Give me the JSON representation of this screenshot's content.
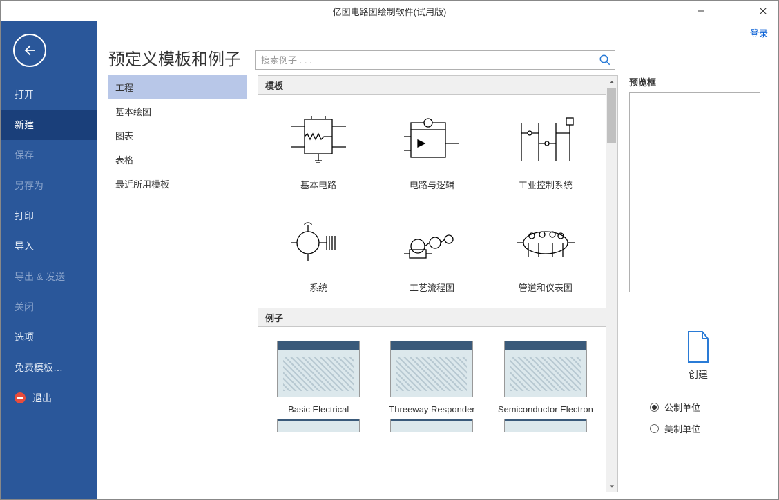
{
  "window": {
    "title": "亿图电路图绘制软件(试用版)"
  },
  "login": "登录",
  "sidebar": {
    "items": [
      {
        "label": "打开",
        "state": "normal"
      },
      {
        "label": "新建",
        "state": "active"
      },
      {
        "label": "保存",
        "state": "disabled"
      },
      {
        "label": "另存为",
        "state": "disabled"
      },
      {
        "label": "打印",
        "state": "normal"
      },
      {
        "label": "导入",
        "state": "normal"
      },
      {
        "label": "导出 & 发送",
        "state": "disabled"
      },
      {
        "label": "关闭",
        "state": "disabled"
      },
      {
        "label": "选项",
        "state": "normal"
      },
      {
        "label": "免费模板…",
        "state": "normal"
      }
    ],
    "exit": "退出"
  },
  "page": {
    "title": "预定义模板和例子"
  },
  "search": {
    "placeholder": "搜索例子 . . ."
  },
  "categories": [
    {
      "label": "工程",
      "active": true
    },
    {
      "label": "基本绘图",
      "active": false
    },
    {
      "label": "图表",
      "active": false
    },
    {
      "label": "表格",
      "active": false
    },
    {
      "label": "最近所用模板",
      "active": false
    }
  ],
  "sections": {
    "templates_head": "模板",
    "examples_head": "例子"
  },
  "templates": [
    {
      "label": "基本电路"
    },
    {
      "label": "电路与逻辑"
    },
    {
      "label": "工业控制系统"
    },
    {
      "label": "系统"
    },
    {
      "label": "工艺流程图"
    },
    {
      "label": "管道和仪表图"
    }
  ],
  "examples": [
    {
      "label": "Basic Electrical"
    },
    {
      "label": "Threeway Responder"
    },
    {
      "label": "Semiconductor Electron"
    }
  ],
  "right": {
    "preview_label": "预览框",
    "create": "创建",
    "units": [
      {
        "label": "公制单位",
        "checked": true
      },
      {
        "label": "美制单位",
        "checked": false
      }
    ]
  },
  "colors": {
    "sidebar_bg": "#2a579a",
    "sidebar_active": "#1a3f7a",
    "category_active": "#b8c7e8",
    "link": "#0b61d6"
  }
}
